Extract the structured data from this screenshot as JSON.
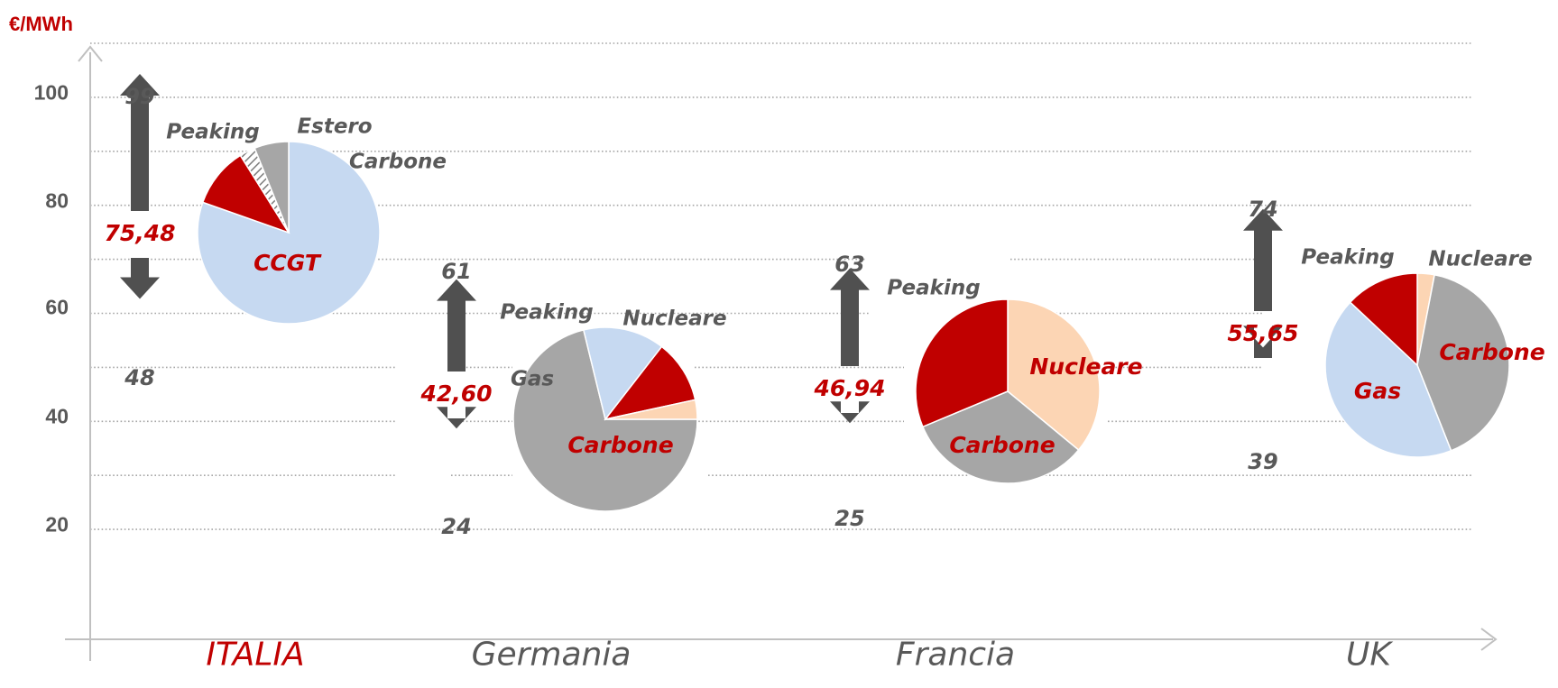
{
  "chart_data": {
    "type": "pie",
    "ylabel": "€/MWh",
    "y_ticks": [
      "100",
      "80",
      "60",
      "40",
      "20"
    ],
    "y_range": [
      0,
      105
    ],
    "grid": true,
    "countries": [
      {
        "name": "ITALIA",
        "highlight": true,
        "max": "99",
        "avg": "75,48",
        "min": "48",
        "slices": [
          {
            "label": "CCGT",
            "share": 0.804,
            "color": "#c6d9f1",
            "label_style": "inside-red"
          },
          {
            "label": "Peaking",
            "share": 0.107,
            "color": "#c00000",
            "label_style": "outside"
          },
          {
            "label": "Estero",
            "share": 0.028,
            "color": "#a6a6a6",
            "label_style": "outside",
            "pattern": "hatch"
          },
          {
            "label": "Carbone",
            "share": 0.061,
            "color": "#a6a6a6",
            "label_style": "outside"
          }
        ]
      },
      {
        "name": "Germania",
        "highlight": false,
        "max": "61",
        "avg": "42,60",
        "min": "24",
        "slices": [
          {
            "label": "Carbone",
            "share": 0.712,
            "color": "#a6a6a6",
            "label_style": "inside-red"
          },
          {
            "label": "Gas",
            "share": 0.143,
            "color": "#c6d9f1",
            "label_style": "outside"
          },
          {
            "label": "Peaking",
            "share": 0.111,
            "color": "#c00000",
            "label_style": "outside"
          },
          {
            "label": "Nucleare",
            "share": 0.034,
            "color": "#fcd5b4",
            "label_style": "outside"
          }
        ]
      },
      {
        "name": "Francia",
        "highlight": false,
        "max": "63",
        "avg": "46,94",
        "min": "25",
        "slices": [
          {
            "label": "Nucleare",
            "share": 0.36,
            "color": "#fcd5b4",
            "label_style": "inside-red"
          },
          {
            "label": "Carbone",
            "share": 0.327,
            "color": "#a6a6a6",
            "label_style": "inside-red"
          },
          {
            "label": "Peaking",
            "share": 0.313,
            "color": "#c00000",
            "label_style": "outside"
          }
        ]
      },
      {
        "name": "UK",
        "highlight": false,
        "max": "74",
        "avg": "55,65",
        "min": "39",
        "slices": [
          {
            "label": "Nucleare",
            "share": 0.03,
            "color": "#fcd5b4",
            "label_style": "outside"
          },
          {
            "label": "Carbone",
            "share": 0.41,
            "color": "#a6a6a6",
            "label_style": "inside-red"
          },
          {
            "label": "Gas",
            "share": 0.43,
            "color": "#c6d9f1",
            "label_style": "inside-red"
          },
          {
            "label": "Peaking",
            "share": 0.13,
            "color": "#c00000",
            "label_style": "outside"
          }
        ]
      }
    ]
  },
  "colors": {
    "accent_red": "#c00000",
    "arrow": "#505050",
    "axis": "#c0c0c0",
    "grid": "#a6a6a6",
    "text_gray": "#595959"
  }
}
